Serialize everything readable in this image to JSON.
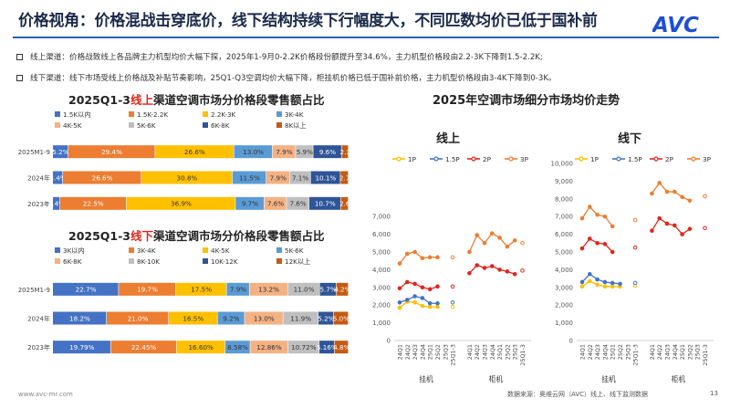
{
  "title": "价格视角：价格混战击穿底价，线下结构持续下行幅度大，不同匹数均价已低于国补前",
  "logo": {
    "text": "AVC",
    "color": "#1f4fd6"
  },
  "bullets": [
    "线上渠道：价格战致线上各品牌主力机型均价大幅下探，2025年1-9月0-2.2K价格段份额提升至34.6%，主力机型价格段由2.2-3K下降到1.5-2.2K;",
    "线下渠道：线下市场受线上价格战及补贴节奏影响，25Q1-Q3空调均价大幅下降，柜挂机价格已低于国补前价格，主力机型价格段由3-4K下降到0-3K。"
  ],
  "sections": {
    "online_title_pre": "2025Q1-3",
    "online_title_hl": "线上",
    "online_title_post": "渠道空调市场分价格段零售额占比",
    "offline_title_pre": "2025Q1-3",
    "offline_title_hl": "线下",
    "offline_title_post": "渠道空调市场分价格段零售额占比",
    "trend_title": "2025年空调市场细分市场均价走势",
    "panel_online": "线上",
    "panel_offline": "线下"
  },
  "footer": {
    "website": "www.avc-mr.com",
    "source": "数据来源：奥维云网（AVC）线上、线下监测数据",
    "page": "13"
  },
  "watermark": "奥维云网",
  "chart_data": [
    {
      "type": "bar",
      "stacked": true,
      "orientation": "horizontal",
      "legend_position": "top",
      "categories": [
        "2025M1-9",
        "2024年",
        "2023年"
      ],
      "series": [
        {
          "name": "1.5K以内",
          "color": "#4472c4",
          "values": [
            5.2,
            3.4,
            2.4
          ]
        },
        {
          "name": "1.5K-2.2K",
          "color": "#ed7d31",
          "values": [
            29.4,
            26.6,
            22.5
          ]
        },
        {
          "name": "2.2K-3K",
          "color": "#ffc000",
          "values": [
            26.6,
            30.8,
            36.9
          ]
        },
        {
          "name": "3K-4K",
          "color": "#5b9bd5",
          "values": [
            13.0,
            11.5,
            9.7
          ]
        },
        {
          "name": "4K-5K",
          "color": "#f4b183",
          "values": [
            7.9,
            7.9,
            7.6
          ]
        },
        {
          "name": "5K-6K",
          "color": "#bfbfbf",
          "values": [
            5.9,
            7.1,
            7.6
          ]
        },
        {
          "name": "6K-8K",
          "color": "#2f5597",
          "values": [
            9.6,
            10.1,
            10.7
          ]
        },
        {
          "name": "8K以上",
          "color": "#c55a11",
          "values": [
            2.3,
            2.7,
            2.6
          ]
        }
      ],
      "labels": [
        [
          "5.2%",
          "29.4%",
          "26.6%",
          "13.0%",
          "7.9%",
          "5.9%",
          "9.6%",
          "2.3"
        ],
        [
          "3.4%",
          "26.6%",
          "30.8%",
          "11.5%",
          "7.9%",
          "7.1%",
          "10.1%",
          "2.7"
        ],
        [
          "2.4%",
          "22.5%",
          "36.9%",
          "9.7%",
          "7.6%",
          "7.6%",
          "10.7%",
          "2.6"
        ]
      ]
    },
    {
      "type": "bar",
      "stacked": true,
      "orientation": "horizontal",
      "legend_position": "top",
      "categories": [
        "2025M1-9",
        "2024年",
        "2023年"
      ],
      "series": [
        {
          "name": "3K以内",
          "color": "#4472c4",
          "values": [
            22.7,
            18.2,
            19.79
          ]
        },
        {
          "name": "3K-4K",
          "color": "#ed7d31",
          "values": [
            19.7,
            21.0,
            22.45
          ]
        },
        {
          "name": "4K-5K",
          "color": "#ffc000",
          "values": [
            17.5,
            16.5,
            16.6
          ]
        },
        {
          "name": "5K-6K",
          "color": "#5b9bd5",
          "values": [
            7.9,
            9.2,
            8.58
          ]
        },
        {
          "name": "6K-8K",
          "color": "#f4b183",
          "values": [
            13.2,
            13.0,
            12.86
          ]
        },
        {
          "name": "8K-10K",
          "color": "#bfbfbf",
          "values": [
            11.0,
            11.9,
            10.72
          ]
        },
        {
          "name": "10K-12K",
          "color": "#2f5597",
          "values": [
            5.7,
            5.2,
            5.16
          ]
        },
        {
          "name": "12K以上",
          "color": "#c55a11",
          "values": [
            4.2,
            5.0,
            4.8
          ]
        }
      ],
      "labels": [
        [
          "22.7%",
          "19.7%",
          "17.5%",
          "7.9%",
          "13.2%",
          "11.0%",
          "5.7%",
          "4.2%"
        ],
        [
          "18.2%",
          "21.0%",
          "16.5%",
          "9.2%",
          "13.0%",
          "11.9%",
          "5.2%",
          "5.0%"
        ],
        [
          "19.79%",
          "22.45%",
          "16.60%",
          "8.58%",
          "12.86%",
          "10.72%",
          "5.16%",
          "4.8%"
        ]
      ]
    },
    {
      "type": "line",
      "panel": "线上",
      "legend_position": "top",
      "ylim": [
        0,
        10000
      ],
      "yticks": [
        0,
        1000,
        2000,
        3000,
        4000,
        5000,
        6000,
        7000
      ],
      "groups": [
        {
          "name": "挂机",
          "x": [
            "24Q1",
            "24Q2",
            "24Q3",
            "24Q4",
            "25Q1",
            "25Q2",
            "25Q3",
            "25Q1-3"
          ]
        },
        {
          "name": "柜机",
          "x": [
            "24Q1",
            "24Q2",
            "24Q3",
            "24Q4",
            "25Q1",
            "25Q2",
            "25Q3",
            "25Q1-3"
          ]
        }
      ],
      "series": [
        {
          "name": "1P",
          "color": "#ffc000",
          "values": [
            [
              1850,
              2200,
              2150,
              1950,
              1900,
              1900,
              null,
              1900
            ],
            [
              null,
              null,
              null,
              null,
              null,
              null,
              null,
              null
            ]
          ]
        },
        {
          "name": "1.5P",
          "color": "#4472c4",
          "values": [
            [
              2150,
              2300,
              2500,
              2400,
              2100,
              2100,
              null,
              2150
            ],
            [
              null,
              null,
              null,
              null,
              null,
              null,
              null,
              null
            ]
          ]
        },
        {
          "name": "2P",
          "color": "#e0261c",
          "values": [
            [
              2950,
              3300,
              3200,
              3000,
              2900,
              3050,
              null,
              3050
            ],
            [
              3800,
              4250,
              4100,
              4200,
              4000,
              3900,
              3750,
              3950
            ]
          ]
        },
        {
          "name": "3P",
          "color": "#ed7d31",
          "values": [
            [
              4350,
              4900,
              5000,
              4650,
              4700,
              4700,
              null,
              4700
            ],
            [
              5000,
              5950,
              5500,
              6050,
              5800,
              5300,
              5650,
              5500
            ]
          ]
        }
      ]
    },
    {
      "type": "line",
      "panel": "线下",
      "legend_position": "top",
      "ylim": [
        0,
        10000
      ],
      "yticks": [
        0,
        1000,
        2000,
        3000,
        4000,
        5000,
        6000,
        7000,
        8000,
        9000,
        10000
      ],
      "groups": [
        {
          "name": "挂机",
          "x": [
            "24Q1",
            "24Q2",
            "24Q3",
            "24Q4",
            "25Q1",
            "25Q2",
            "25Q3",
            "25Q1-3"
          ]
        },
        {
          "name": "柜机",
          "x": [
            "24Q1",
            "24Q2",
            "24Q3",
            "24Q4",
            "25Q1",
            "25Q2",
            "25Q3",
            "25Q1-3"
          ]
        }
      ],
      "series": [
        {
          "name": "1P",
          "color": "#ffc000",
          "values": [
            [
              3050,
              3350,
              3150,
              3050,
              3050,
              3050,
              null,
              3100
            ],
            [
              null,
              null,
              null,
              null,
              null,
              null,
              null,
              null
            ]
          ]
        },
        {
          "name": "1.5P",
          "color": "#4472c4",
          "values": [
            [
              3300,
              3750,
              3450,
              3300,
              3250,
              3200,
              null,
              3250
            ],
            [
              null,
              null,
              null,
              null,
              null,
              null,
              null,
              null
            ]
          ]
        },
        {
          "name": "2P",
          "color": "#e0261c",
          "values": [
            [
              5200,
              5750,
              5500,
              5450,
              5000,
              null,
              null,
              5250
            ],
            [
              6200,
              6900,
              6600,
              6500,
              6000,
              6300,
              null,
              6350
            ]
          ]
        },
        {
          "name": "3P",
          "color": "#ed7d31",
          "values": [
            [
              6900,
              7550,
              7100,
              7000,
              6450,
              null,
              null,
              6800
            ],
            [
              8300,
              8900,
              8400,
              8400,
              8100,
              7900,
              null,
              8150
            ]
          ]
        }
      ]
    }
  ]
}
